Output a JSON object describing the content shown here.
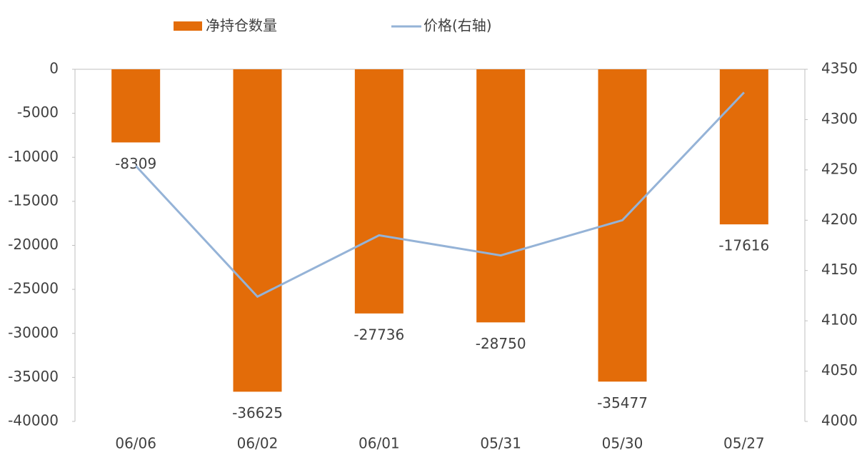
{
  "chart_data": {
    "type": "bar",
    "categories": [
      "06/06",
      "06/02",
      "06/01",
      "05/31",
      "05/30",
      "05/27"
    ],
    "series": [
      {
        "name": "净持仓数量",
        "type": "bar",
        "color": "#e36c09",
        "values": [
          -8309,
          -36625,
          -27736,
          -28750,
          -35477,
          -17616
        ]
      },
      {
        "name": "价格(右轴)",
        "type": "line",
        "axis": "y2",
        "color": "#95b3d7",
        "values": [
          4254,
          4124,
          4185,
          4165,
          4200,
          4327
        ]
      }
    ],
    "ylim": [
      -40000,
      0
    ],
    "yticks": [
      0,
      -5000,
      -10000,
      -15000,
      -20000,
      -25000,
      -30000,
      -35000,
      -40000
    ],
    "y2lim": [
      4000,
      4350
    ],
    "y2ticks": [
      4350,
      4300,
      4250,
      4200,
      4150,
      4100,
      4050,
      4000
    ],
    "legend": "top",
    "data_labels": true
  }
}
